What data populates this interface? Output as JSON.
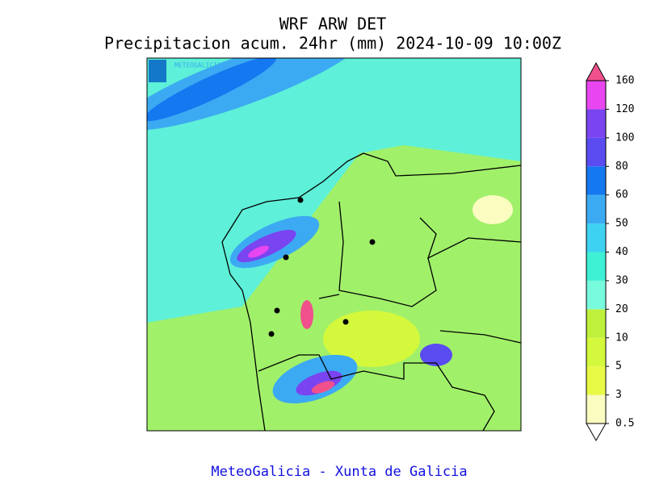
{
  "title": [
    "WRF ARW DET",
    "Precipitacion acum. 24hr (mm) 2024-10-09 10:00Z"
  ],
  "map_logo_text": "METEOGALICIA",
  "colorbar": {
    "levels": [
      0.5,
      3,
      5,
      10,
      20,
      30,
      40,
      50,
      60,
      80,
      100,
      120,
      160
    ],
    "colors": [
      "#fafcc0",
      "#e8fa46",
      "#d4f83c",
      "#bef03c",
      "#78fadc",
      "#3ef0d4",
      "#3ed2f2",
      "#3caaf2",
      "#1478f0",
      "#5a4cf0",
      "#7a44f0",
      "#e846f0"
    ],
    "over_color": "#f0508c",
    "under_color": "#ffffff"
  },
  "footer": "MeteoGalicia - Xunta de Galicia"
}
